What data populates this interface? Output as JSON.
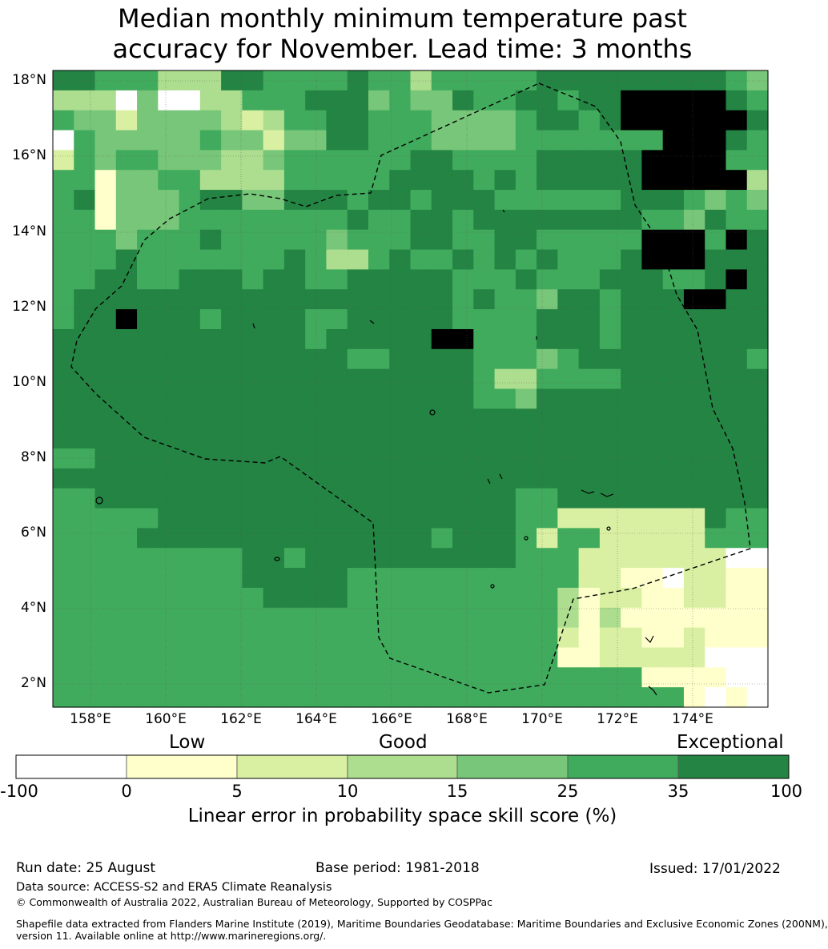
{
  "title_line1": "Median monthly minimum temperature past",
  "title_line2": "accuracy for November. Lead time: 3 months",
  "map": {
    "lat_labels": [
      "18°N",
      "16°N",
      "14°N",
      "12°N",
      "10°N",
      "8°N",
      "6°N",
      "4°N",
      "2°N"
    ],
    "lon_labels": [
      "158°E",
      "160°E",
      "162°E",
      "164°E",
      "166°E",
      "168°E",
      "170°E",
      "172°E",
      "174°E"
    ]
  },
  "colorbar": {
    "category_labels": [
      "Low",
      "Good",
      "Exceptional"
    ],
    "tick_labels": [
      "-100",
      "0",
      "5",
      "10",
      "15",
      "25",
      "35",
      "100"
    ],
    "colors": [
      "#ffffff",
      "#ffffcc",
      "#d9f0a3",
      "#addd8e",
      "#78c679",
      "#41ab5d",
      "#238443"
    ],
    "caption": "Linear error in probability space skill score (%)"
  },
  "footer": {
    "run_date": "Run date: 25 August",
    "base_period": "Base period: 1981-2018",
    "issued": "Issued: 17/01/2022",
    "data_source": "Data source: ACCESS-S2 and ERA5 Climate Reanalysis",
    "copyright": "© Commonwealth of Australia 2022, Australian Bureau of Meteorology, Supported by COSPPac",
    "shapefile_line1": "Shapefile data extracted from Flanders Marine Institute (2019), Maritime Boundaries Geodatabase: Maritime Boundaries and Exclusive Economic Zones (200NM),",
    "shapefile_line2": "version 11. Available online at http://www.marineregions.org/."
  },
  "grid_levels": [
    "6655533366555565535555566666666654",
    "3330400335556664544655665667777765",
    "5442444432355665554444566567777776",
    "0544444544244665554444555555577765",
    "2545544433455555566555566666777755",
    "5514455333355555666656566666777773",
    "5614445664466656656665555556665454",
    "5514445555555565566566666666554655",
    "5554555655555455566556655555777576",
    "5556555555565335655656565556777666",
    "5566556665665566666555655566655676",
    "5666666666666666666565546656667766",
    "5667666566665566666555566656666666",
    "6666666666665666667755566656666666",
    "6666666666666655666655545666666665",
    "6666666666666666666653355556666666",
    "6666666666666666666655466666666666",
    "6666666666666666666666666666666666",
    "6666666666666666666666666666666666",
    "5566666666666666666666666666666666",
    "6666666666666666666666666666666666",
    "5566666666666666666666556666666666",
    "5555566666666666666666552222222655",
    "5555666666666666665666525522222555",
    "5555555556656666666666555222222200",
    "5555555556666655555555555221102211",
    "5555555555666655555555553122112211",
    "5555555555555555555555553131111111",
    "5555555555555555555555552122112111",
    "5555555555555555555555551122222000",
    "5555555555555555555555555555111100",
    "5555555555555555555555555555551010"
  ]
}
